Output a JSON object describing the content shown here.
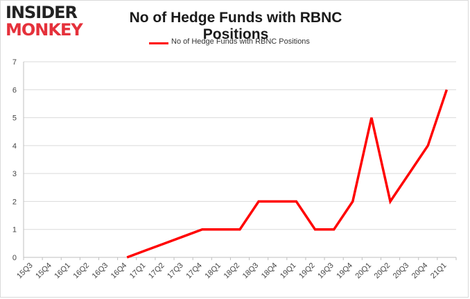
{
  "logo": {
    "line1": "INSIDER",
    "line2": "MONKEY"
  },
  "colors": {
    "series": "#ff0000",
    "grid": "#d9d9d9",
    "axis": "#bfbfbf",
    "logo_accent": "#e5313b"
  },
  "chart_data": {
    "type": "line",
    "title": "No of Hedge Funds with RBNC Positions",
    "xlabel": "",
    "ylabel": "",
    "categories": [
      "15Q3",
      "15Q4",
      "16Q1",
      "16Q2",
      "16Q3",
      "16Q4",
      "17Q1",
      "17Q2",
      "17Q3",
      "17Q4",
      "18Q1",
      "18Q2",
      "18Q3",
      "18Q4",
      "19Q1",
      "19Q2",
      "19Q3",
      "19Q4",
      "20Q1",
      "20Q2",
      "20Q3",
      "20Q4",
      "21Q1"
    ],
    "series": [
      {
        "name": "No of Hedge Funds with RBNC Positions",
        "values": [
          null,
          null,
          null,
          null,
          null,
          0,
          0.25,
          0.5,
          0.75,
          1,
          1,
          1,
          2,
          2,
          2,
          1,
          1,
          2,
          5,
          2,
          3,
          4,
          6
        ]
      }
    ],
    "ylim": [
      0,
      7
    ],
    "yticks": [
      0,
      1,
      2,
      3,
      4,
      5,
      6,
      7
    ],
    "grid": true,
    "legend": "top-center"
  }
}
